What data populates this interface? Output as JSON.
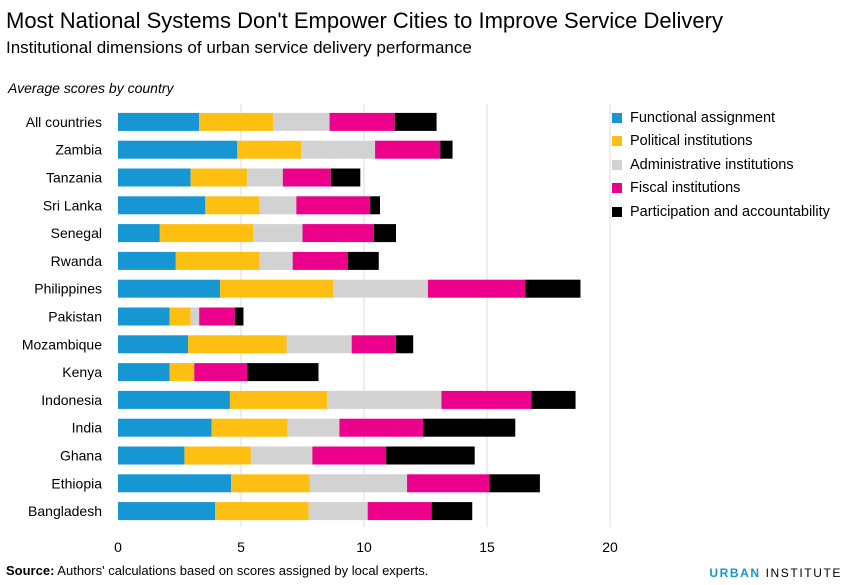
{
  "header": {
    "title": "Most National Systems Don't Empower Cities to Improve Service Delivery",
    "subtitle": "Institutional dimensions of urban service delivery performance",
    "axis_note": "Average scores by country"
  },
  "footer": {
    "source_label": "Source:",
    "source_text": " Authors' calculations based on scores assigned by local experts.",
    "logo_part1": "URBAN",
    "logo_part2": " INSTITUTE"
  },
  "chart_data": {
    "type": "bar",
    "orientation": "horizontal",
    "stacked": true,
    "title": "Most National Systems Don't Empower Cities to Improve Service Delivery",
    "subtitle": "Institutional dimensions of urban service delivery performance",
    "categories": [
      "All countries",
      "Zambia",
      "Tanzania",
      "Sri Lanka",
      "Senegal",
      "Rwanda",
      "Philippines",
      "Pakistan",
      "Mozambique",
      "Kenya",
      "Indonesia",
      "India",
      "Ghana",
      "Ethiopia",
      "Bangladesh"
    ],
    "series": [
      {
        "name": "Functional assignment",
        "color": "#1696d2",
        "values": [
          3.3,
          4.85,
          2.95,
          3.55,
          1.7,
          2.35,
          4.15,
          2.1,
          2.85,
          2.1,
          4.55,
          3.8,
          2.7,
          4.6,
          3.95
        ]
      },
      {
        "name": "Political institutions",
        "color": "#fdbf11",
        "values": [
          3.0,
          2.6,
          2.3,
          2.2,
          3.8,
          3.4,
          4.6,
          0.85,
          4.0,
          1.0,
          3.95,
          3.1,
          2.7,
          3.2,
          3.8
        ]
      },
      {
        "name": "Administrative institutions",
        "color": "#d2d2d2",
        "values": [
          2.3,
          3.0,
          1.45,
          1.5,
          2.0,
          1.35,
          3.85,
          0.35,
          2.65,
          0.0,
          4.65,
          2.1,
          2.5,
          3.95,
          2.4
        ]
      },
      {
        "name": "Fiscal institutions",
        "color": "#ec008b",
        "values": [
          2.65,
          2.65,
          1.95,
          3.0,
          2.9,
          2.25,
          3.95,
          1.45,
          1.8,
          2.15,
          3.65,
          3.4,
          3.0,
          3.35,
          2.6
        ]
      },
      {
        "name": "Participation and accountability",
        "color": "#000000",
        "values": [
          1.7,
          0.5,
          1.2,
          0.4,
          0.9,
          1.25,
          2.25,
          0.35,
          0.7,
          2.9,
          1.8,
          3.75,
          3.6,
          2.05,
          1.65
        ]
      }
    ],
    "xlim": [
      0,
      20
    ],
    "xticks": [
      "0",
      "5",
      "10",
      "15",
      "20"
    ],
    "grid": true,
    "legend": "top-right"
  }
}
